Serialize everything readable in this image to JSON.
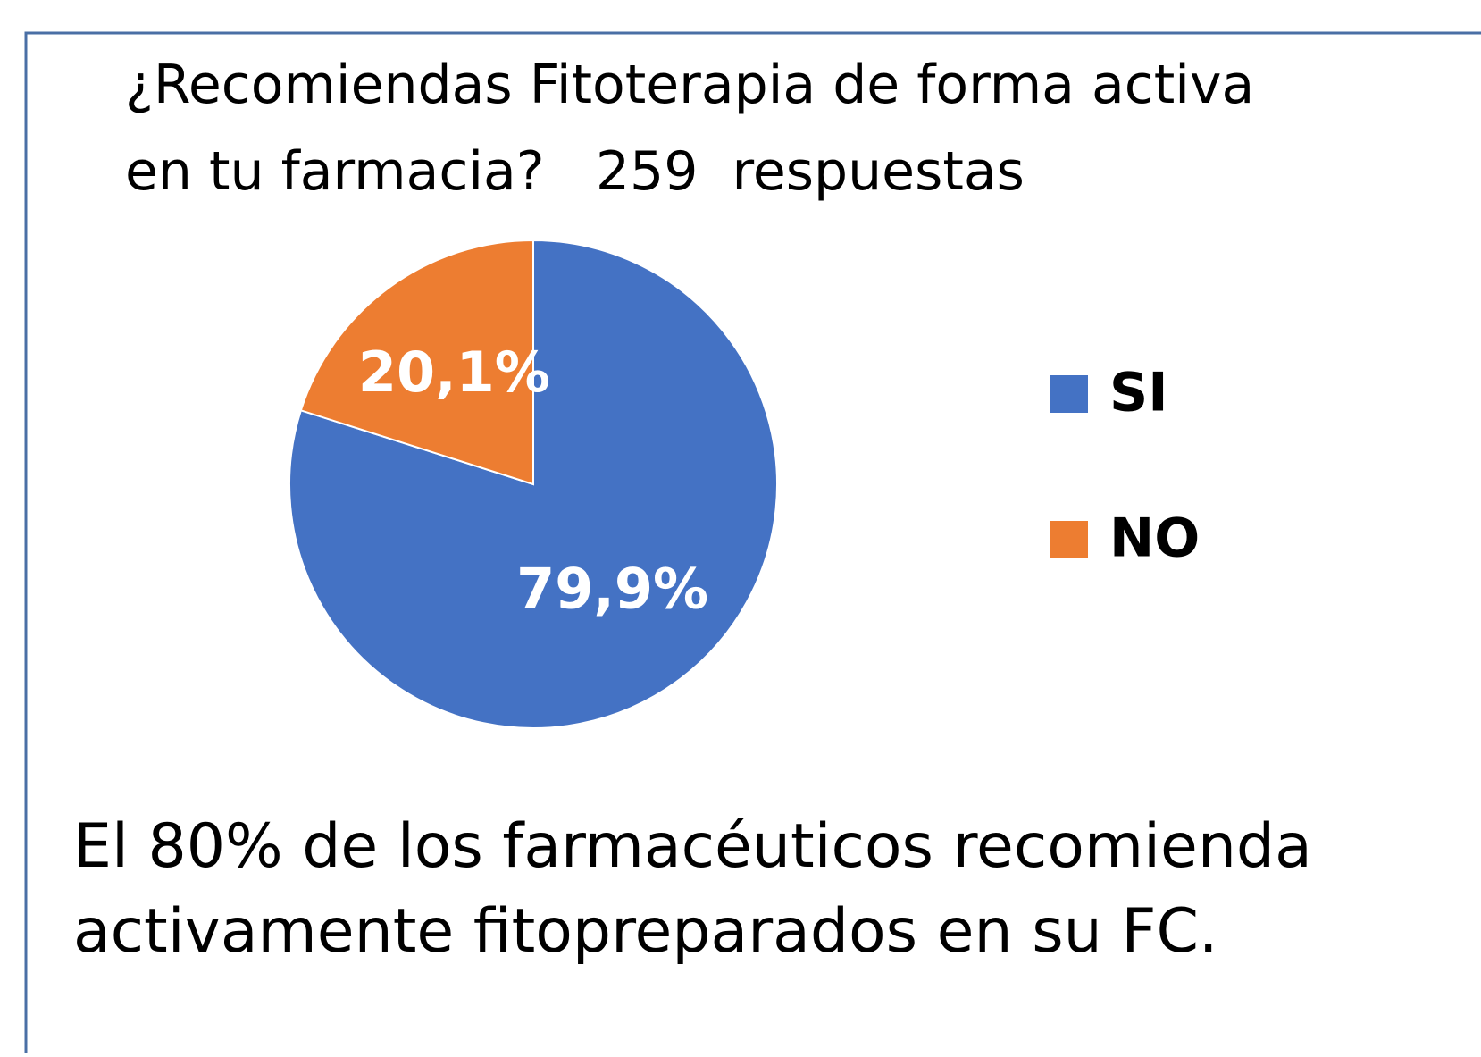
{
  "chart_data": {
    "type": "pie",
    "title": [
      "¿Recomiendas Fitoterapia de forma activa",
      "en tu farmacia?   259  respuestas"
    ],
    "categories": [
      "SI",
      "NO"
    ],
    "values": [
      79.9,
      20.1
    ],
    "value_labels": [
      "79,9%",
      "20,1%"
    ],
    "colors": [
      "#4472c4",
      "#ed7d31"
    ],
    "legend": "right",
    "annotation": [
      "El 80% de los farmacéuticos recomienda",
      "activamente fitopreparados en su FC."
    ]
  }
}
